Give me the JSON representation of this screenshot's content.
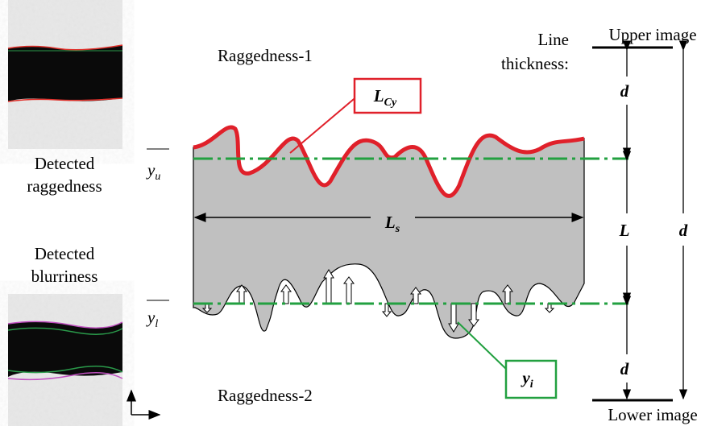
{
  "labels": {
    "raggedness_1": "Raggedness-1",
    "raggedness_2": "Raggedness-2",
    "detected_raggedness": [
      "Detected",
      "raggedness"
    ],
    "detected_blurriness": [
      "Detected",
      "blurriness"
    ],
    "line_thickness": [
      "Line",
      "thickness:"
    ],
    "upper_image": "Upper image",
    "lower_image": "Lower image",
    "d_top": "d",
    "L": "L",
    "d_bottom": "d",
    "d_total": "d",
    "L_Cy": {
      "main": "L",
      "sub": "Cy"
    },
    "L_s": {
      "main": "L",
      "sub": "s"
    },
    "y_u": {
      "main": "y",
      "sub": "u"
    },
    "y_l": {
      "main": "y",
      "sub": "l"
    },
    "y_i": {
      "main": "y",
      "sub": "i"
    }
  }
}
